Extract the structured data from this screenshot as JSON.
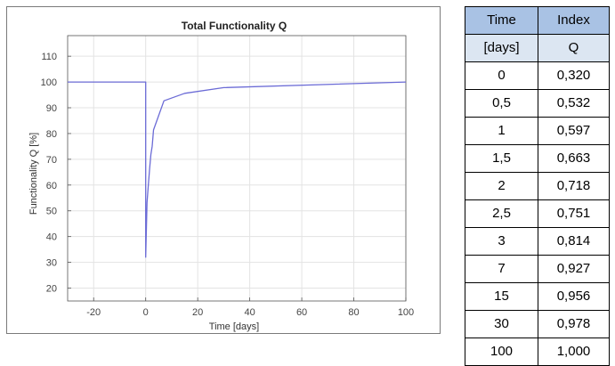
{
  "chart_data": {
    "type": "line",
    "title": "Total Functionality Q",
    "xlabel": "Time [days]",
    "ylabel": "Functionality Q [%]",
    "xlim": [
      -30,
      100
    ],
    "ylim": [
      15,
      118
    ],
    "xticks": [
      -20,
      0,
      20,
      40,
      60,
      80,
      100
    ],
    "yticks": [
      20,
      30,
      40,
      50,
      60,
      70,
      80,
      90,
      100,
      110
    ],
    "grid": true,
    "series": [
      {
        "color": "#6b6bd6",
        "x": [
          -30,
          0,
          0,
          0.5,
          1,
          1.5,
          2,
          2.5,
          3,
          7,
          15,
          30,
          100
        ],
        "y": [
          100,
          100,
          32,
          53.2,
          59.7,
          66.3,
          71.8,
          75.1,
          81.4,
          92.7,
          95.6,
          97.8,
          100
        ]
      }
    ]
  },
  "table": {
    "headers": [
      [
        "Time",
        "Index"
      ],
      [
        "[days]",
        "Q"
      ]
    ],
    "rows": [
      [
        "0",
        "0,320"
      ],
      [
        "0,5",
        "0,532"
      ],
      [
        "1",
        "0,597"
      ],
      [
        "1,5",
        "0,663"
      ],
      [
        "2",
        "0,718"
      ],
      [
        "2,5",
        "0,751"
      ],
      [
        "3",
        "0,814"
      ],
      [
        "7",
        "0,927"
      ],
      [
        "15",
        "0,956"
      ],
      [
        "30",
        "0,978"
      ],
      [
        "100",
        "1,000"
      ]
    ]
  }
}
